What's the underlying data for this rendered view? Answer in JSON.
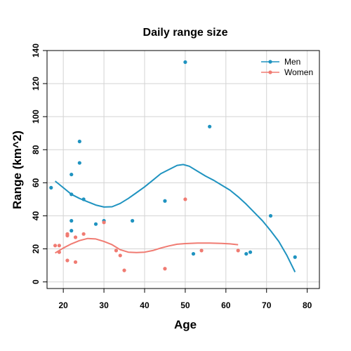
{
  "chart_data": {
    "type": "scatter",
    "title": "Daily range size",
    "xlabel": "Age",
    "ylabel": "Range (km^2)",
    "xlim": [
      16,
      83
    ],
    "ylim": [
      -4,
      140
    ],
    "x_ticks": [
      20,
      30,
      40,
      50,
      60,
      70,
      80
    ],
    "y_ticks": [
      0,
      20,
      40,
      60,
      80,
      100,
      120,
      140
    ],
    "grid": true,
    "legend_position": "top-right",
    "series": [
      {
        "name": "Men",
        "color": "#1f93c0",
        "points": [
          {
            "x": 17,
            "y": 57
          },
          {
            "x": 22,
            "y": 65
          },
          {
            "x": 22,
            "y": 53
          },
          {
            "x": 22,
            "y": 37
          },
          {
            "x": 22,
            "y": 31
          },
          {
            "x": 24,
            "y": 85
          },
          {
            "x": 24,
            "y": 72
          },
          {
            "x": 25,
            "y": 50
          },
          {
            "x": 28,
            "y": 35
          },
          {
            "x": 30,
            "y": 37
          },
          {
            "x": 37,
            "y": 37
          },
          {
            "x": 45,
            "y": 49
          },
          {
            "x": 50,
            "y": 133
          },
          {
            "x": 52,
            "y": 17
          },
          {
            "x": 56,
            "y": 94
          },
          {
            "x": 65,
            "y": 17
          },
          {
            "x": 66,
            "y": 18
          },
          {
            "x": 71,
            "y": 40
          },
          {
            "x": 77,
            "y": 15
          }
        ],
        "smooth": [
          {
            "x": 18,
            "y": 61
          },
          {
            "x": 20,
            "y": 57
          },
          {
            "x": 22,
            "y": 53
          },
          {
            "x": 24,
            "y": 50.5
          },
          {
            "x": 26,
            "y": 48.5
          },
          {
            "x": 28,
            "y": 46.5
          },
          {
            "x": 30,
            "y": 45.3
          },
          {
            "x": 32,
            "y": 45.5
          },
          {
            "x": 34,
            "y": 47.5
          },
          {
            "x": 36,
            "y": 50.5
          },
          {
            "x": 38,
            "y": 54
          },
          {
            "x": 40,
            "y": 57.5
          },
          {
            "x": 42,
            "y": 61.5
          },
          {
            "x": 44,
            "y": 65.5
          },
          {
            "x": 46,
            "y": 68
          },
          {
            "x": 48,
            "y": 70.5
          },
          {
            "x": 49.5,
            "y": 71
          },
          {
            "x": 51,
            "y": 70
          },
          {
            "x": 53,
            "y": 67
          },
          {
            "x": 55,
            "y": 64
          },
          {
            "x": 57,
            "y": 61.5
          },
          {
            "x": 59,
            "y": 58.5
          },
          {
            "x": 61,
            "y": 55.5
          },
          {
            "x": 63,
            "y": 51.5
          },
          {
            "x": 65,
            "y": 47
          },
          {
            "x": 67,
            "y": 42
          },
          {
            "x": 69,
            "y": 37
          },
          {
            "x": 71,
            "y": 31
          },
          {
            "x": 73,
            "y": 24.5
          },
          {
            "x": 75,
            "y": 16
          },
          {
            "x": 77,
            "y": 6
          }
        ]
      },
      {
        "name": "Women",
        "color": "#f07b72",
        "points": [
          {
            "x": 18,
            "y": 22
          },
          {
            "x": 19,
            "y": 18
          },
          {
            "x": 19,
            "y": 22
          },
          {
            "x": 21,
            "y": 28
          },
          {
            "x": 21,
            "y": 29
          },
          {
            "x": 21,
            "y": 13
          },
          {
            "x": 23,
            "y": 12
          },
          {
            "x": 23,
            "y": 27
          },
          {
            "x": 25,
            "y": 29
          },
          {
            "x": 30,
            "y": 36
          },
          {
            "x": 33,
            "y": 19
          },
          {
            "x": 34,
            "y": 16
          },
          {
            "x": 35,
            "y": 7
          },
          {
            "x": 45,
            "y": 8
          },
          {
            "x": 50,
            "y": 50
          },
          {
            "x": 54,
            "y": 19
          },
          {
            "x": 63,
            "y": 19
          }
        ],
        "smooth": [
          {
            "x": 18,
            "y": 17.5
          },
          {
            "x": 20,
            "y": 20.5
          },
          {
            "x": 22,
            "y": 23
          },
          {
            "x": 24,
            "y": 25
          },
          {
            "x": 26,
            "y": 26.3
          },
          {
            "x": 28,
            "y": 26
          },
          {
            "x": 30,
            "y": 24.5
          },
          {
            "x": 32,
            "y": 22.5
          },
          {
            "x": 34,
            "y": 19.5
          },
          {
            "x": 36,
            "y": 18
          },
          {
            "x": 38,
            "y": 17.8
          },
          {
            "x": 40,
            "y": 18
          },
          {
            "x": 42,
            "y": 19
          },
          {
            "x": 44,
            "y": 20.5
          },
          {
            "x": 46,
            "y": 21.8
          },
          {
            "x": 48,
            "y": 22.8
          },
          {
            "x": 50,
            "y": 23.2
          },
          {
            "x": 53,
            "y": 23.5
          },
          {
            "x": 56,
            "y": 23.5
          },
          {
            "x": 59,
            "y": 23.3
          },
          {
            "x": 61,
            "y": 23
          },
          {
            "x": 63,
            "y": 22.5
          }
        ]
      }
    ]
  }
}
